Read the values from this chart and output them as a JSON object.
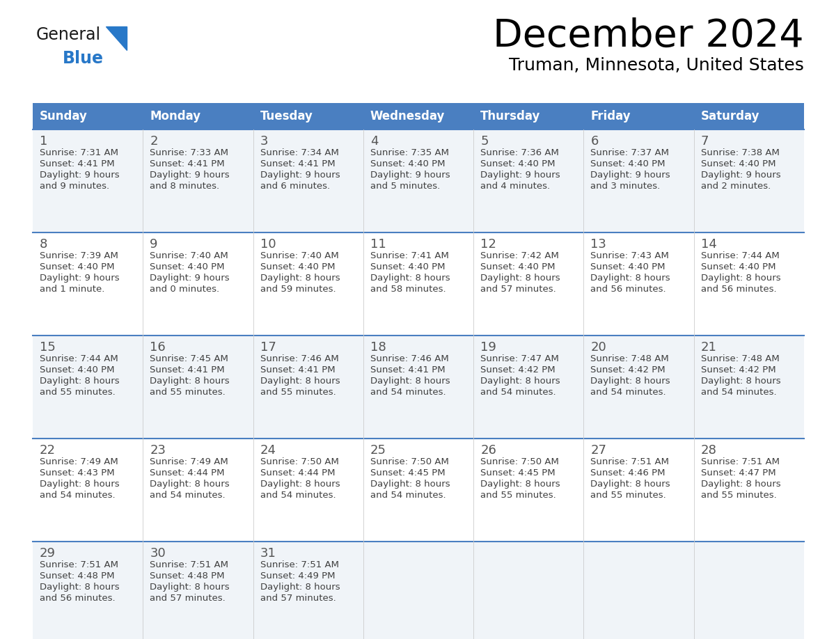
{
  "title": "December 2024",
  "subtitle": "Truman, Minnesota, United States",
  "header_bg": "#4A7FC1",
  "header_text_color": "#FFFFFF",
  "weekdays": [
    "Sunday",
    "Monday",
    "Tuesday",
    "Wednesday",
    "Thursday",
    "Friday",
    "Saturday"
  ],
  "divider_color": "#4A7FC1",
  "text_color": "#404040",
  "day_num_color": "#555555",
  "logo_general_color": "#1a1a1a",
  "logo_blue_color": "#2878C8",
  "logo_triangle_color": "#2878C8",
  "days": [
    {
      "day": 1,
      "col": 0,
      "row": 0,
      "sunrise": "7:31 AM",
      "sunset": "4:41 PM",
      "daylight_h": "9 hours",
      "daylight_m": "and 9 minutes."
    },
    {
      "day": 2,
      "col": 1,
      "row": 0,
      "sunrise": "7:33 AM",
      "sunset": "4:41 PM",
      "daylight_h": "9 hours",
      "daylight_m": "and 8 minutes."
    },
    {
      "day": 3,
      "col": 2,
      "row": 0,
      "sunrise": "7:34 AM",
      "sunset": "4:41 PM",
      "daylight_h": "9 hours",
      "daylight_m": "and 6 minutes."
    },
    {
      "day": 4,
      "col": 3,
      "row": 0,
      "sunrise": "7:35 AM",
      "sunset": "4:40 PM",
      "daylight_h": "9 hours",
      "daylight_m": "and 5 minutes."
    },
    {
      "day": 5,
      "col": 4,
      "row": 0,
      "sunrise": "7:36 AM",
      "sunset": "4:40 PM",
      "daylight_h": "9 hours",
      "daylight_m": "and 4 minutes."
    },
    {
      "day": 6,
      "col": 5,
      "row": 0,
      "sunrise": "7:37 AM",
      "sunset": "4:40 PM",
      "daylight_h": "9 hours",
      "daylight_m": "and 3 minutes."
    },
    {
      "day": 7,
      "col": 6,
      "row": 0,
      "sunrise": "7:38 AM",
      "sunset": "4:40 PM",
      "daylight_h": "9 hours",
      "daylight_m": "and 2 minutes."
    },
    {
      "day": 8,
      "col": 0,
      "row": 1,
      "sunrise": "7:39 AM",
      "sunset": "4:40 PM",
      "daylight_h": "9 hours",
      "daylight_m": "and 1 minute."
    },
    {
      "day": 9,
      "col": 1,
      "row": 1,
      "sunrise": "7:40 AM",
      "sunset": "4:40 PM",
      "daylight_h": "9 hours",
      "daylight_m": "and 0 minutes."
    },
    {
      "day": 10,
      "col": 2,
      "row": 1,
      "sunrise": "7:40 AM",
      "sunset": "4:40 PM",
      "daylight_h": "8 hours",
      "daylight_m": "and 59 minutes."
    },
    {
      "day": 11,
      "col": 3,
      "row": 1,
      "sunrise": "7:41 AM",
      "sunset": "4:40 PM",
      "daylight_h": "8 hours",
      "daylight_m": "and 58 minutes."
    },
    {
      "day": 12,
      "col": 4,
      "row": 1,
      "sunrise": "7:42 AM",
      "sunset": "4:40 PM",
      "daylight_h": "8 hours",
      "daylight_m": "and 57 minutes."
    },
    {
      "day": 13,
      "col": 5,
      "row": 1,
      "sunrise": "7:43 AM",
      "sunset": "4:40 PM",
      "daylight_h": "8 hours",
      "daylight_m": "and 56 minutes."
    },
    {
      "day": 14,
      "col": 6,
      "row": 1,
      "sunrise": "7:44 AM",
      "sunset": "4:40 PM",
      "daylight_h": "8 hours",
      "daylight_m": "and 56 minutes."
    },
    {
      "day": 15,
      "col": 0,
      "row": 2,
      "sunrise": "7:44 AM",
      "sunset": "4:40 PM",
      "daylight_h": "8 hours",
      "daylight_m": "and 55 minutes."
    },
    {
      "day": 16,
      "col": 1,
      "row": 2,
      "sunrise": "7:45 AM",
      "sunset": "4:41 PM",
      "daylight_h": "8 hours",
      "daylight_m": "and 55 minutes."
    },
    {
      "day": 17,
      "col": 2,
      "row": 2,
      "sunrise": "7:46 AM",
      "sunset": "4:41 PM",
      "daylight_h": "8 hours",
      "daylight_m": "and 55 minutes."
    },
    {
      "day": 18,
      "col": 3,
      "row": 2,
      "sunrise": "7:46 AM",
      "sunset": "4:41 PM",
      "daylight_h": "8 hours",
      "daylight_m": "and 54 minutes."
    },
    {
      "day": 19,
      "col": 4,
      "row": 2,
      "sunrise": "7:47 AM",
      "sunset": "4:42 PM",
      "daylight_h": "8 hours",
      "daylight_m": "and 54 minutes."
    },
    {
      "day": 20,
      "col": 5,
      "row": 2,
      "sunrise": "7:48 AM",
      "sunset": "4:42 PM",
      "daylight_h": "8 hours",
      "daylight_m": "and 54 minutes."
    },
    {
      "day": 21,
      "col": 6,
      "row": 2,
      "sunrise": "7:48 AM",
      "sunset": "4:42 PM",
      "daylight_h": "8 hours",
      "daylight_m": "and 54 minutes."
    },
    {
      "day": 22,
      "col": 0,
      "row": 3,
      "sunrise": "7:49 AM",
      "sunset": "4:43 PM",
      "daylight_h": "8 hours",
      "daylight_m": "and 54 minutes."
    },
    {
      "day": 23,
      "col": 1,
      "row": 3,
      "sunrise": "7:49 AM",
      "sunset": "4:44 PM",
      "daylight_h": "8 hours",
      "daylight_m": "and 54 minutes."
    },
    {
      "day": 24,
      "col": 2,
      "row": 3,
      "sunrise": "7:50 AM",
      "sunset": "4:44 PM",
      "daylight_h": "8 hours",
      "daylight_m": "and 54 minutes."
    },
    {
      "day": 25,
      "col": 3,
      "row": 3,
      "sunrise": "7:50 AM",
      "sunset": "4:45 PM",
      "daylight_h": "8 hours",
      "daylight_m": "and 54 minutes."
    },
    {
      "day": 26,
      "col": 4,
      "row": 3,
      "sunrise": "7:50 AM",
      "sunset": "4:45 PM",
      "daylight_h": "8 hours",
      "daylight_m": "and 55 minutes."
    },
    {
      "day": 27,
      "col": 5,
      "row": 3,
      "sunrise": "7:51 AM",
      "sunset": "4:46 PM",
      "daylight_h": "8 hours",
      "daylight_m": "and 55 minutes."
    },
    {
      "day": 28,
      "col": 6,
      "row": 3,
      "sunrise": "7:51 AM",
      "sunset": "4:47 PM",
      "daylight_h": "8 hours",
      "daylight_m": "and 55 minutes."
    },
    {
      "day": 29,
      "col": 0,
      "row": 4,
      "sunrise": "7:51 AM",
      "sunset": "4:48 PM",
      "daylight_h": "8 hours",
      "daylight_m": "and 56 minutes."
    },
    {
      "day": 30,
      "col": 1,
      "row": 4,
      "sunrise": "7:51 AM",
      "sunset": "4:48 PM",
      "daylight_h": "8 hours",
      "daylight_m": "and 57 minutes."
    },
    {
      "day": 31,
      "col": 2,
      "row": 4,
      "sunrise": "7:51 AM",
      "sunset": "4:49 PM",
      "daylight_h": "8 hours",
      "daylight_m": "and 57 minutes."
    }
  ]
}
